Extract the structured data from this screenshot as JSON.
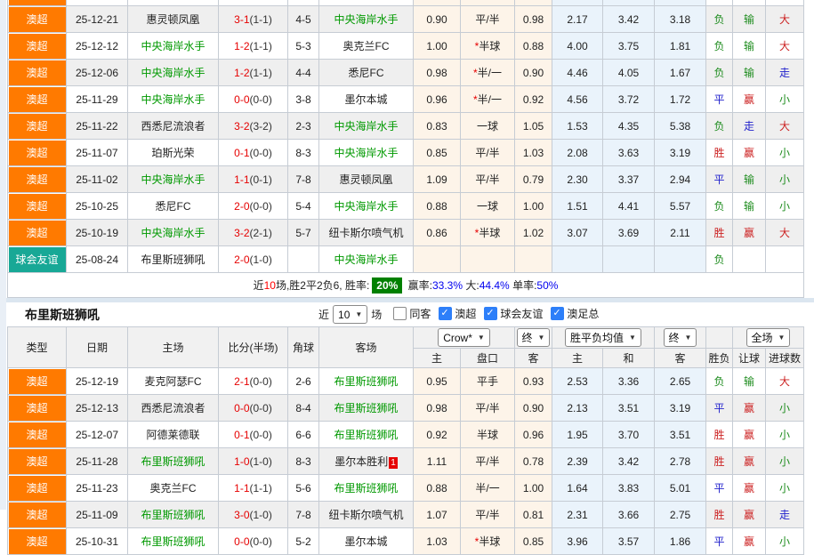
{
  "colors": {
    "accent_orange": "#ff7a00",
    "accent_teal": "#18a896",
    "win_red": "#cc2222",
    "draw_blue": "#2222cc",
    "lose_green": "#1e8c1e",
    "team_green": "#009900",
    "score_red": "#e60000",
    "rate_blue": "#0000ee",
    "rate_badge_green": "#008000"
  },
  "header": {
    "left_columns": [
      "类型",
      "日期",
      "主场",
      "比分(半场)",
      "角球",
      "客场"
    ],
    "sub_columns": [
      "主",
      "盘口",
      "客",
      "主",
      "和",
      "客",
      "胜负",
      "让球",
      "进球数"
    ],
    "selects": [
      "Crow*",
      "终",
      "胜平负均值",
      "终",
      "全场"
    ]
  },
  "table1": {
    "subject_team": "中央海岸水手",
    "clipped_row": {
      "league": "澳超"
    },
    "rows": [
      {
        "league": "澳超",
        "date": "25-12-21",
        "home": "惠灵顿凤凰",
        "score": "3-1",
        "half": "1-1",
        "corners": "4-5",
        "away": "中央海岸水手",
        "ah": [
          "0.90",
          "平/半",
          "0.98"
        ],
        "eu": [
          "2.17",
          "3.42",
          "3.18"
        ],
        "results": [
          "负",
          "输",
          "大"
        ]
      },
      {
        "league": "澳超",
        "date": "25-12-12",
        "home": "中央海岸水手",
        "score": "1-2",
        "half": "1-1",
        "corners": "5-3",
        "away": "奥克兰FC",
        "ah": [
          "1.00",
          "*半球",
          "0.88"
        ],
        "eu": [
          "4.00",
          "3.75",
          "1.81"
        ],
        "results": [
          "负",
          "输",
          "大"
        ]
      },
      {
        "league": "澳超",
        "date": "25-12-06",
        "home": "中央海岸水手",
        "score": "1-2",
        "half": "1-1",
        "corners": "4-4",
        "away": "悉尼FC",
        "ah": [
          "0.98",
          "*半/一",
          "0.90"
        ],
        "eu": [
          "4.46",
          "4.05",
          "1.67"
        ],
        "results": [
          "负",
          "输",
          "走"
        ]
      },
      {
        "league": "澳超",
        "date": "25-11-29",
        "home": "中央海岸水手",
        "score": "0-0",
        "half": "0-0",
        "corners": "3-8",
        "away": "墨尔本城",
        "ah": [
          "0.96",
          "*半/一",
          "0.92"
        ],
        "eu": [
          "4.56",
          "3.72",
          "1.72"
        ],
        "results": [
          "平",
          "赢",
          "小"
        ]
      },
      {
        "league": "澳超",
        "date": "25-11-22",
        "home": "西悉尼流浪者",
        "score": "3-2",
        "half": "3-2",
        "corners": "2-3",
        "away": "中央海岸水手",
        "ah": [
          "0.83",
          "一球",
          "1.05"
        ],
        "eu": [
          "1.53",
          "4.35",
          "5.38"
        ],
        "results": [
          "负",
          "走",
          "大"
        ]
      },
      {
        "league": "澳超",
        "date": "25-11-07",
        "home": "珀斯光荣",
        "score": "0-1",
        "half": "0-0",
        "corners": "8-3",
        "away": "中央海岸水手",
        "ah": [
          "0.85",
          "平/半",
          "1.03"
        ],
        "eu": [
          "2.08",
          "3.63",
          "3.19"
        ],
        "results": [
          "胜",
          "赢",
          "小"
        ]
      },
      {
        "league": "澳超",
        "date": "25-11-02",
        "home": "中央海岸水手",
        "score": "1-1",
        "half": "0-1",
        "corners": "7-8",
        "away": "惠灵顿凤凰",
        "ah": [
          "1.09",
          "平/半",
          "0.79"
        ],
        "eu": [
          "2.30",
          "3.37",
          "2.94"
        ],
        "results": [
          "平",
          "输",
          "小"
        ]
      },
      {
        "league": "澳超",
        "date": "25-10-25",
        "home": "悉尼FC",
        "score": "2-0",
        "half": "0-0",
        "corners": "5-4",
        "away": "中央海岸水手",
        "ah": [
          "0.88",
          "一球",
          "1.00"
        ],
        "eu": [
          "1.51",
          "4.41",
          "5.57"
        ],
        "results": [
          "负",
          "输",
          "小"
        ]
      },
      {
        "league": "澳超",
        "date": "25-10-19",
        "home": "中央海岸水手",
        "score": "3-2",
        "half": "2-1",
        "corners": "5-7",
        "away": "纽卡斯尔喷气机",
        "ah": [
          "0.86",
          "*半球",
          "1.02"
        ],
        "eu": [
          "3.07",
          "3.69",
          "2.11"
        ],
        "results": [
          "胜",
          "赢",
          "大"
        ]
      },
      {
        "league": "球会友谊",
        "date": "25-08-24",
        "home": "布里斯班狮吼",
        "score": "2-0",
        "half": "1-0",
        "corners": "",
        "away": "中央海岸水手",
        "ah": [
          "",
          "",
          ""
        ],
        "eu": [
          "",
          "",
          ""
        ],
        "results": [
          "负",
          "",
          ""
        ]
      }
    ],
    "summary": {
      "prefix": "近",
      "count": "10",
      "middle": "场,胜2平2负6, 胜率:",
      "win_rate": "20%",
      "stats": [
        {
          "label": "赢率:",
          "value": "33.3%"
        },
        {
          "label": "大:",
          "value": "44.4%"
        },
        {
          "label": "单率:",
          "value": "50%"
        }
      ]
    }
  },
  "table2": {
    "title": "布里斯班狮吼",
    "subject_team": "布里斯班狮吼",
    "controls": {
      "near_label": "近",
      "near_value": "10",
      "games_label": "场",
      "checkboxes": [
        {
          "label": "同客",
          "checked": false
        },
        {
          "label": "澳超",
          "checked": true
        },
        {
          "label": "球会友谊",
          "checked": true
        },
        {
          "label": "澳足总",
          "checked": true
        }
      ]
    },
    "rows": [
      {
        "league": "澳超",
        "date": "25-12-19",
        "home": "麦克阿瑟FC",
        "score": "2-1",
        "half": "0-0",
        "corners": "2-6",
        "away": "布里斯班狮吼",
        "ah": [
          "0.95",
          "平手",
          "0.93"
        ],
        "eu": [
          "2.53",
          "3.36",
          "2.65"
        ],
        "results": [
          "负",
          "输",
          "大"
        ]
      },
      {
        "league": "澳超",
        "date": "25-12-13",
        "home": "西悉尼流浪者",
        "score": "0-0",
        "half": "0-0",
        "corners": "8-4",
        "away": "布里斯班狮吼",
        "ah": [
          "0.98",
          "平/半",
          "0.90"
        ],
        "eu": [
          "2.13",
          "3.51",
          "3.19"
        ],
        "results": [
          "平",
          "赢",
          "小"
        ]
      },
      {
        "league": "澳超",
        "date": "25-12-07",
        "home": "阿德莱德联",
        "score": "0-1",
        "half": "0-0",
        "corners": "6-6",
        "away": "布里斯班狮吼",
        "ah": [
          "0.92",
          "半球",
          "0.96"
        ],
        "eu": [
          "1.95",
          "3.70",
          "3.51"
        ],
        "results": [
          "胜",
          "赢",
          "小"
        ]
      },
      {
        "league": "澳超",
        "date": "25-11-28",
        "home": "布里斯班狮吼",
        "score": "1-0",
        "half": "1-0",
        "corners": "8-3",
        "away": "墨尔本胜利",
        "away_badge": "1",
        "ah": [
          "1.11",
          "平/半",
          "0.78"
        ],
        "eu": [
          "2.39",
          "3.42",
          "2.78"
        ],
        "results": [
          "胜",
          "赢",
          "小"
        ]
      },
      {
        "league": "澳超",
        "date": "25-11-23",
        "home": "奥克兰FC",
        "score": "1-1",
        "half": "1-1",
        "corners": "5-6",
        "away": "布里斯班狮吼",
        "ah": [
          "0.88",
          "半/一",
          "1.00"
        ],
        "eu": [
          "1.64",
          "3.83",
          "5.01"
        ],
        "results": [
          "平",
          "赢",
          "小"
        ]
      },
      {
        "league": "澳超",
        "date": "25-11-09",
        "home": "布里斯班狮吼",
        "score": "3-0",
        "half": "1-0",
        "corners": "7-8",
        "away": "纽卡斯尔喷气机",
        "ah": [
          "1.07",
          "平/半",
          "0.81"
        ],
        "eu": [
          "2.31",
          "3.66",
          "2.75"
        ],
        "results": [
          "胜",
          "赢",
          "走"
        ]
      },
      {
        "league": "澳超",
        "date": "25-10-31",
        "home": "布里斯班狮吼",
        "score": "0-0",
        "half": "0-0",
        "corners": "5-2",
        "away": "墨尔本城",
        "ah": [
          "1.03",
          "*半球",
          "0.85"
        ],
        "eu": [
          "3.96",
          "3.57",
          "1.86"
        ],
        "results": [
          "平",
          "赢",
          "小"
        ]
      }
    ]
  }
}
